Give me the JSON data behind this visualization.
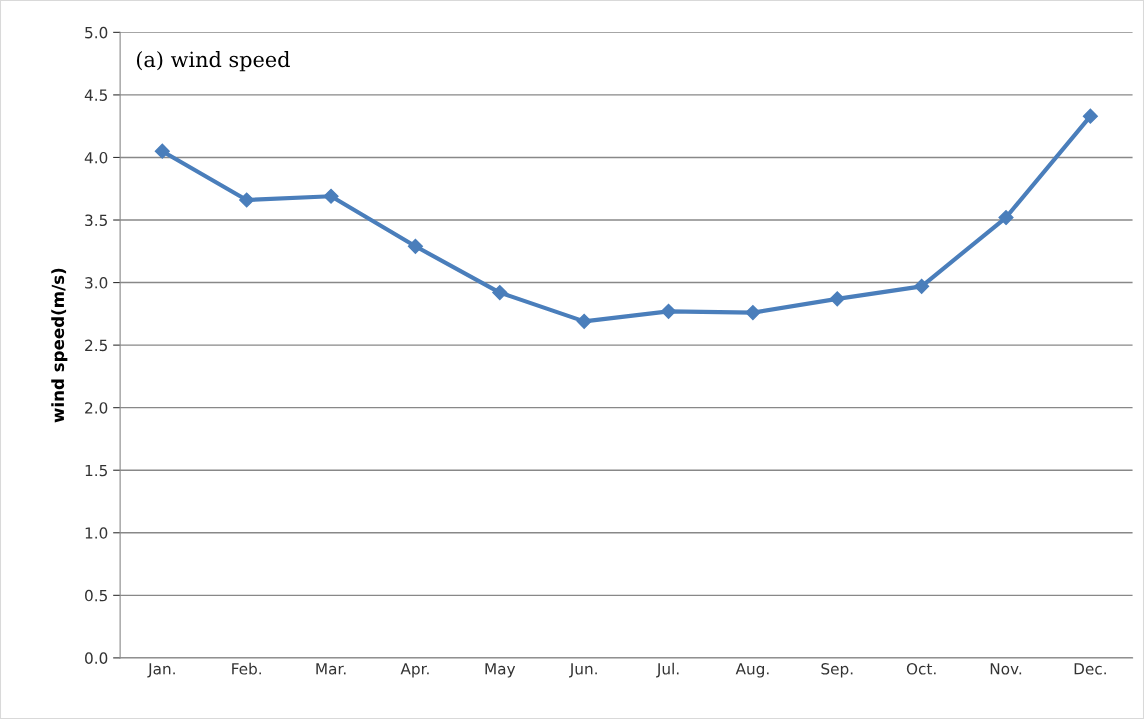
{
  "chart_data": {
    "type": "line",
    "ylabel": "wind speed(m/s)",
    "annotations": [
      "(a) wind speed"
    ],
    "categories": [
      "Jan.",
      "Feb.",
      "Mar.",
      "Apr.",
      "May",
      "Jun.",
      "Jul.",
      "Aug.",
      "Sep.",
      "Oct.",
      "Nov.",
      "Dec."
    ],
    "series": [
      {
        "color": "#4a7ebb",
        "values": [
          4.05,
          3.66,
          3.69,
          3.29,
          2.92,
          2.69,
          2.77,
          2.76,
          2.87,
          2.97,
          3.52,
          4.33
        ]
      }
    ],
    "ylim": [
      0,
      5
    ],
    "yticks": [
      {
        "value": 0,
        "label": "0.0"
      },
      {
        "value": 0.5,
        "label": "0.5"
      },
      {
        "value": 1,
        "label": "1.0"
      },
      {
        "value": 1.5,
        "label": "1.5"
      },
      {
        "value": 2,
        "label": "2.0"
      },
      {
        "value": 2.5,
        "label": "2.5"
      },
      {
        "value": 3,
        "label": "3.0"
      },
      {
        "value": 3.5,
        "label": "3.5"
      },
      {
        "value": 4,
        "label": "4.0"
      },
      {
        "value": 4.5,
        "label": "4.5"
      },
      {
        "value": 5,
        "label": "5.0"
      }
    ],
    "grid": "y",
    "marker": "diamond",
    "line_style": "solid"
  }
}
